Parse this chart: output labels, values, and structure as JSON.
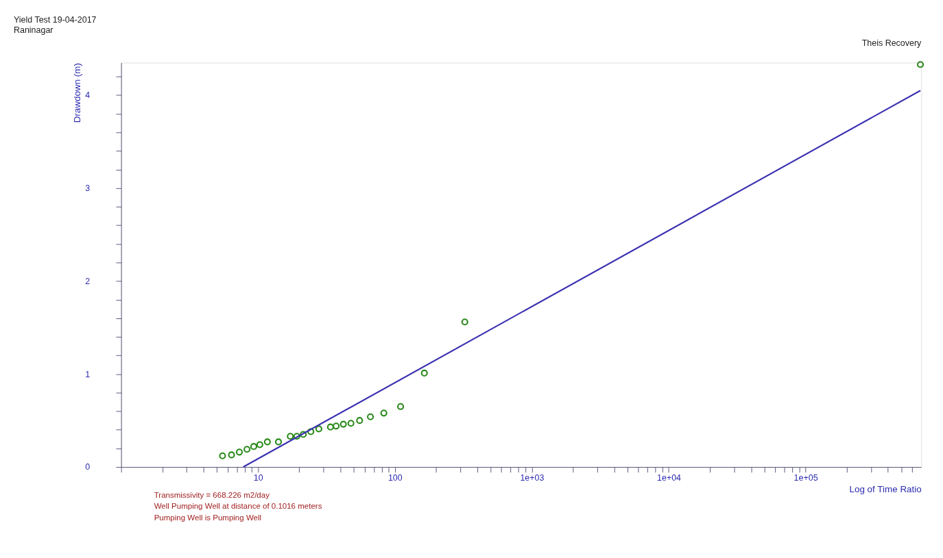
{
  "chart_data": {
    "type": "scatter",
    "title": "Yield Test 19-04-2017",
    "subtitle": "Raninagar",
    "xlabel": "Log of Time Ratio",
    "ylabel": "Drawdown (m)",
    "annotations": [
      "Theis Recovery",
      "Transmissivity = 668.226 m2/day",
      "Well Pumping Well at distance of 0.1016 meters",
      "Pumping Well is Pumping Well"
    ],
    "log": "x",
    "grid": false,
    "xlim": [
      1,
      700000
    ],
    "ylim": [
      0,
      4.35
    ],
    "xticks": [
      {
        "value": 1,
        "label": null
      },
      {
        "value": 2,
        "label": null
      },
      {
        "value": 3,
        "label": null
      },
      {
        "value": 4,
        "label": null
      },
      {
        "value": 5,
        "label": null
      },
      {
        "value": 6,
        "label": null
      },
      {
        "value": 7,
        "label": null
      },
      {
        "value": 8,
        "label": null
      },
      {
        "value": 9,
        "label": null
      },
      10,
      {
        "value": 20,
        "label": null
      },
      {
        "value": 30,
        "label": null
      },
      {
        "value": 40,
        "label": null
      },
      {
        "value": 50,
        "label": null
      },
      {
        "value": 60,
        "label": null
      },
      {
        "value": 70,
        "label": null
      },
      {
        "value": 80,
        "label": null
      },
      {
        "value": 90,
        "label": null
      },
      100,
      {
        "value": 200,
        "label": null
      },
      {
        "value": 300,
        "label": null
      },
      {
        "value": 400,
        "label": null
      },
      {
        "value": 500,
        "label": null
      },
      {
        "value": 600,
        "label": null
      },
      {
        "value": 700,
        "label": null
      },
      {
        "value": 800,
        "label": null
      },
      {
        "value": 900,
        "label": null
      },
      {
        "value": 1000,
        "label": "1e+03"
      },
      {
        "value": 2000,
        "label": null
      },
      {
        "value": 3000,
        "label": null
      },
      {
        "value": 4000,
        "label": null
      },
      {
        "value": 5000,
        "label": null
      },
      {
        "value": 6000,
        "label": null
      },
      {
        "value": 7000,
        "label": null
      },
      {
        "value": 8000,
        "label": null
      },
      {
        "value": 9000,
        "label": null
      },
      {
        "value": 10000,
        "label": "1e+04"
      },
      {
        "value": 20000,
        "label": null
      },
      {
        "value": 30000,
        "label": null
      },
      {
        "value": 40000,
        "label": null
      },
      {
        "value": 50000,
        "label": null
      },
      {
        "value": 60000,
        "label": null
      },
      {
        "value": 70000,
        "label": null
      },
      {
        "value": 80000,
        "label": null
      },
      {
        "value": 90000,
        "label": null
      },
      {
        "value": 100000,
        "label": "1e+05"
      },
      {
        "value": 200000,
        "label": null
      },
      {
        "value": 300000,
        "label": null
      },
      {
        "value": 400000,
        "label": null
      },
      {
        "value": 500000,
        "label": null
      },
      {
        "value": 600000,
        "label": null
      }
    ],
    "yticks": [
      0,
      {
        "value": 0.2,
        "label": null
      },
      {
        "value": 0.4,
        "label": null
      },
      {
        "value": 0.6,
        "label": null
      },
      {
        "value": 0.8,
        "label": null
      },
      1,
      {
        "value": 1.2,
        "label": null
      },
      {
        "value": 1.4,
        "label": null
      },
      {
        "value": 1.6,
        "label": null
      },
      {
        "value": 1.8,
        "label": null
      },
      2,
      {
        "value": 2.2,
        "label": null
      },
      {
        "value": 2.4,
        "label": null
      },
      {
        "value": 2.6,
        "label": null
      },
      {
        "value": 2.8,
        "label": null
      },
      3,
      {
        "value": 3.2,
        "label": null
      },
      {
        "value": 3.4,
        "label": null
      },
      {
        "value": 3.6,
        "label": null
      },
      {
        "value": 3.8,
        "label": null
      },
      4,
      {
        "value": 4.2,
        "label": null
      }
    ],
    "series": [
      {
        "type": "scatter",
        "marker": "circle",
        "color": "#2a8a1a",
        "x": [
          5.5,
          6.4,
          7.3,
          8.3,
          9.3,
          10.3,
          11.7,
          14.1,
          17.2,
          19.2,
          21.4,
          24.3,
          27.8,
          33.8,
          37.2,
          42,
          47.7,
          55.2,
          66.2,
          83,
          110,
          164,
          324,
          690000
        ],
        "values": [
          0.12,
          0.13,
          0.16,
          0.19,
          0.22,
          0.24,
          0.27,
          0.27,
          0.33,
          0.33,
          0.35,
          0.38,
          0.41,
          0.43,
          0.44,
          0.46,
          0.47,
          0.5,
          0.54,
          0.58,
          0.65,
          1.01,
          1.56,
          4.33
        ]
      },
      {
        "type": "line",
        "marker": "none",
        "line_style": "solid",
        "color": "#3a2fb0",
        "x": [
          7.8,
          690000
        ],
        "values": [
          0,
          4.05
        ]
      }
    ]
  }
}
